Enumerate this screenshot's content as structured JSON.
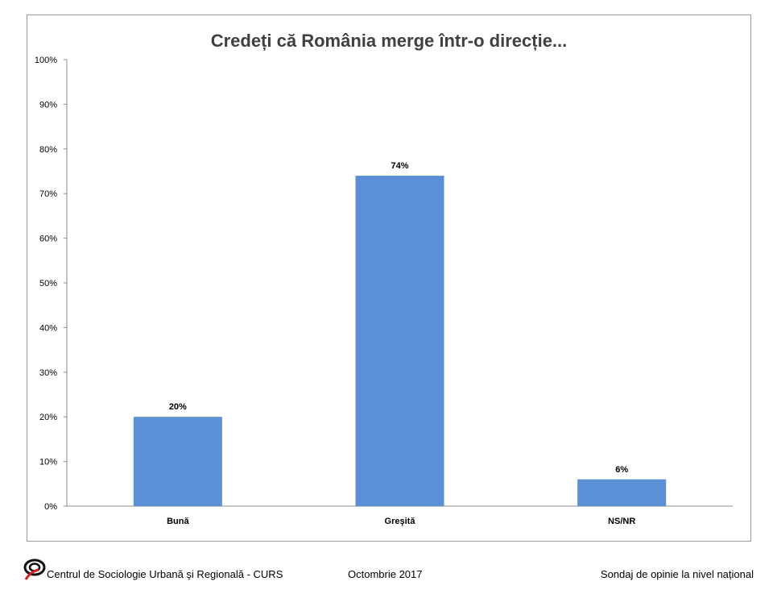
{
  "chart_data": {
    "type": "bar",
    "title": "Credeți că România merge într-o direcție...",
    "categories": [
      "Bună",
      "Greşită",
      "NS/NR"
    ],
    "values": [
      20,
      74,
      6
    ],
    "value_labels": [
      "20%",
      "74%",
      "6%"
    ],
    "ylim": [
      0,
      100
    ],
    "yticks": [
      0,
      10,
      20,
      30,
      40,
      50,
      60,
      70,
      80,
      90,
      100
    ],
    "ytick_labels": [
      "0%",
      "10%",
      "20%",
      "30%",
      "40%",
      "50%",
      "60%",
      "70%",
      "80%",
      "90%",
      "100%"
    ],
    "xlabel": "",
    "ylabel": "",
    "grid": false,
    "bar_color": "#5B8FD6"
  },
  "footer": {
    "organization": "Centrul de Sociologie Urbană şi Regională - CURS",
    "date": "Octombrie 2017",
    "survey": "Sondaj de opinie la nivel național"
  },
  "logo": {
    "icon": "curs-logo-icon",
    "color_dark": "#111111",
    "color_accent": "#d22020"
  }
}
